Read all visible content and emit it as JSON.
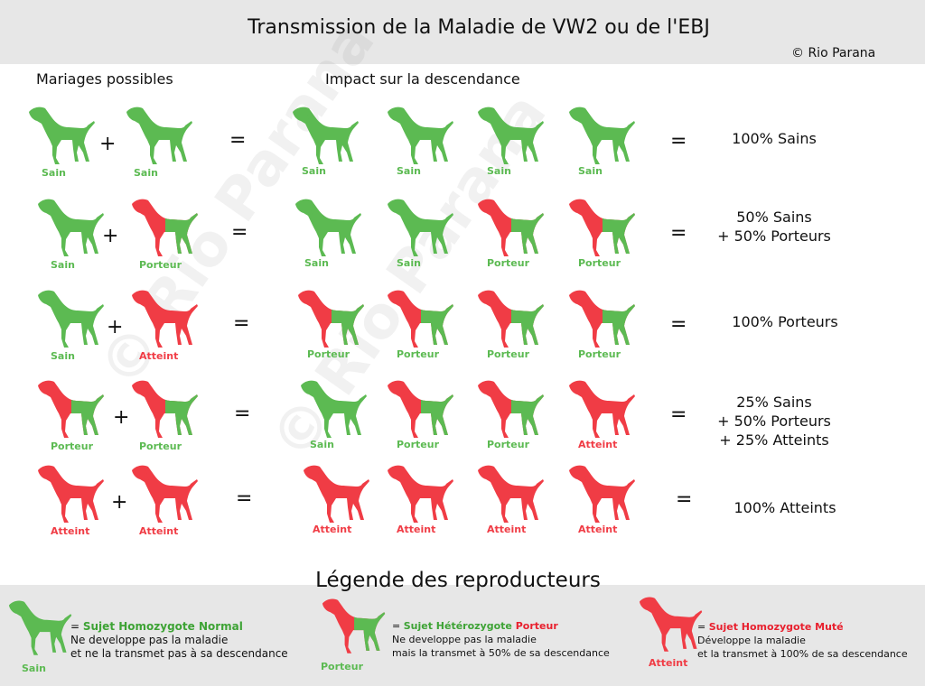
{
  "title": "Transmission de la Maladie de VW2 ou de l'EBJ",
  "copyright": "© Rio Parana",
  "watermark": "© Rio Parana",
  "headers": {
    "left": "Mariages possibles",
    "right": "Impact sur la descendance"
  },
  "operators": {
    "plus": "+",
    "equals": "="
  },
  "colors": {
    "healthy": "#5cba52",
    "affected": "#f03c45",
    "legend_red": "#e8202e"
  },
  "label_sain": "Sain",
  "label_porteur": "Porteur",
  "label_atteint": "Atteint",
  "rows": [
    {
      "result": [
        "100% Sains"
      ]
    },
    {
      "result": [
        "50% Sains",
        "+ 50% Porteurs"
      ]
    },
    {
      "result": [
        "100% Porteurs"
      ]
    },
    {
      "result": [
        "25% Sains",
        "+ 50% Porteurs",
        "+ 25% Atteints"
      ]
    },
    {
      "result": [
        "100% Atteints"
      ]
    }
  ],
  "legend": {
    "title": "Légende des reproducteurs",
    "items": [
      {
        "label": "Sain",
        "prefix": "= ",
        "heading_a": "Sujet Homozygote ",
        "heading_b": "Normal",
        "line1": "Ne developpe pas la maladie",
        "line2": "et ne la transmet pas à sa descendance"
      },
      {
        "label": "Porteur",
        "prefix": "= ",
        "heading_a": "Sujet Hétérozygote ",
        "heading_b": "Porteur",
        "line1": "Ne developpe pas la maladie",
        "line2": "mais la transmet à 50% de sa descendance"
      },
      {
        "label": "Atteint",
        "prefix": "= ",
        "heading_a": "Sujet Homozygote ",
        "heading_b": "Muté",
        "line1": "Développe la maladie",
        "line2": "et la transmet à 100% de sa descendance"
      }
    ]
  }
}
